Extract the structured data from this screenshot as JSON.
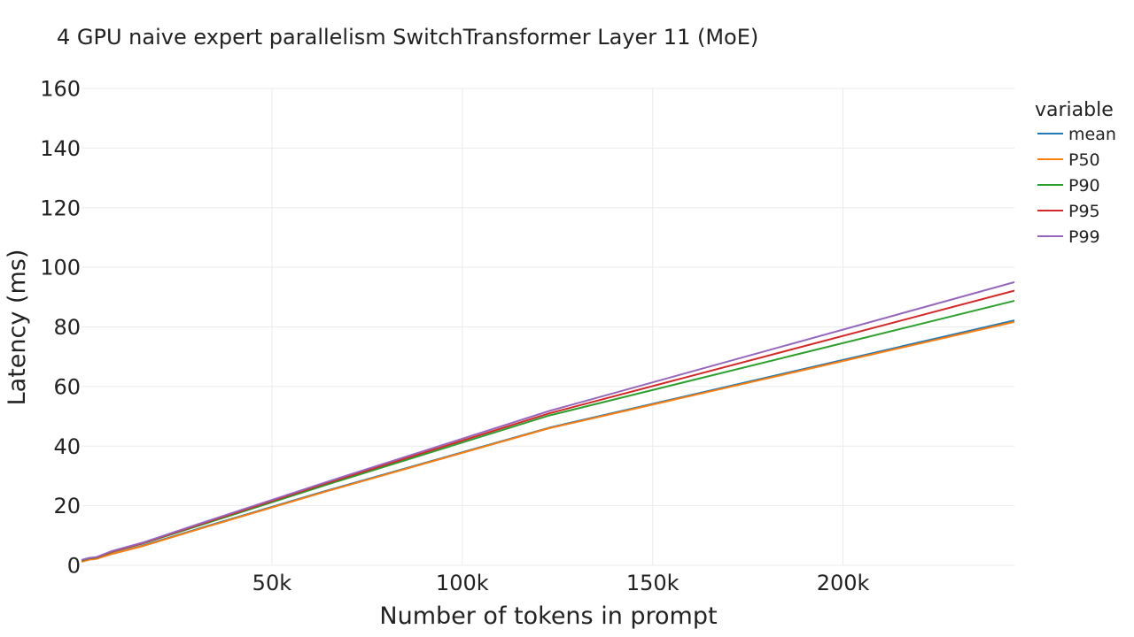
{
  "chart_data": {
    "type": "line",
    "title": "4 GPU naive expert parallelism SwitchTransformer Layer 11 (MoE)",
    "xlabel": "Number of tokens in prompt",
    "ylabel": "Latency (ms)",
    "xlim": [
      0,
      245000
    ],
    "ylim": [
      0,
      160
    ],
    "xticks": [
      50000,
      100000,
      150000,
      200000
    ],
    "xtick_labels": [
      "50k",
      "100k",
      "150k",
      "200k"
    ],
    "yticks": [
      0,
      20,
      40,
      60,
      80,
      100,
      120,
      140,
      160
    ],
    "ytick_labels": [
      "0",
      "20",
      "40",
      "60",
      "80",
      "100",
      "120",
      "140",
      "160"
    ],
    "grid": true,
    "legend_title": "variable",
    "legend_position": "top-right",
    "x": [
      0,
      2000,
      4000,
      8000,
      16000,
      32000,
      64000,
      122880,
      245760
    ],
    "series": [
      {
        "name": "mean",
        "color": "#1f77b4",
        "values": [
          1.3,
          2.0,
          2.3,
          3.9,
          6.6,
          12.8,
          24.9,
          46.2,
          82.4
        ]
      },
      {
        "name": "P50",
        "color": "#ff7f0e",
        "values": [
          1.2,
          1.9,
          2.2,
          3.8,
          6.4,
          12.6,
          24.7,
          46.0,
          81.9
        ]
      },
      {
        "name": "P90",
        "color": "#2ca02c",
        "values": [
          1.6,
          2.3,
          2.6,
          4.5,
          7.3,
          13.8,
          26.9,
          50.3,
          89.0
        ]
      },
      {
        "name": "P95",
        "color": "#d62728",
        "values": [
          1.7,
          2.4,
          2.7,
          4.6,
          7.4,
          14.1,
          27.4,
          51.0,
          92.4
        ]
      },
      {
        "name": "P99",
        "color": "#9467bd",
        "values": [
          1.8,
          2.5,
          2.8,
          4.8,
          7.6,
          14.4,
          27.8,
          51.8,
          95.3
        ]
      }
    ]
  }
}
